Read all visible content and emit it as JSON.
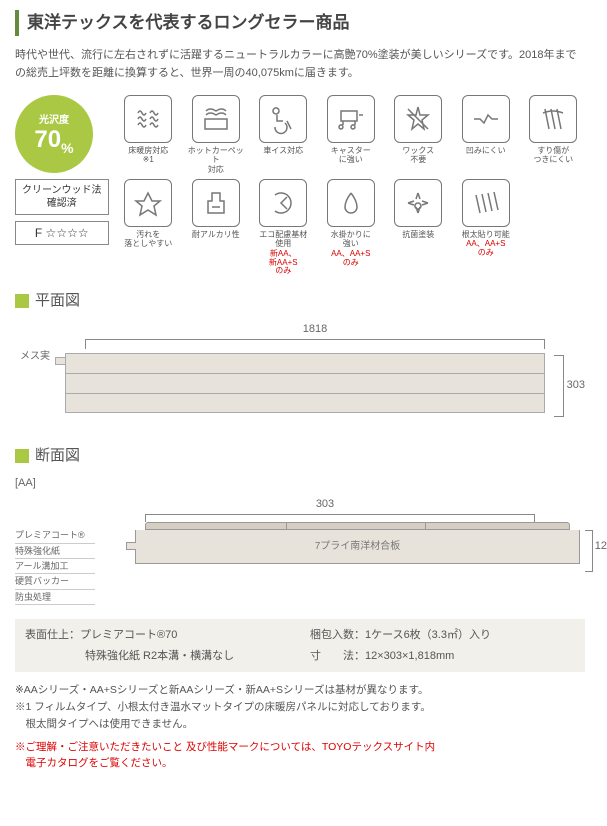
{
  "title": "東洋テックスを代表するロングセラー商品",
  "description": "時代や世代、流行に左右されずに活躍するニュートラルカラーに高艶70%塗装が美しいシリーズです。2018年までの総売上坪数を距離に換算すると、世界一周の40,075kmに届きます。",
  "gloss": {
    "label": "光沢度",
    "value": "70",
    "unit": "%"
  },
  "cert": "クリーンウッド法\n確認済",
  "f_rating": "F ☆☆☆☆",
  "icons": [
    {
      "label": "床暖房対応\n※1",
      "note": ""
    },
    {
      "label": "ホットカーペット\n対応",
      "note": ""
    },
    {
      "label": "車イス対応",
      "note": ""
    },
    {
      "label": "キャスター\nに強い",
      "note": ""
    },
    {
      "label": "ワックス\n不要",
      "note": ""
    },
    {
      "label": "凹みにくい",
      "note": ""
    },
    {
      "label": "すり傷が\nつきにくい",
      "note": ""
    },
    {
      "label": "汚れを\n落としやすい",
      "note": ""
    },
    {
      "label": "耐アルカリ性",
      "note": ""
    },
    {
      "label": "エコ配慮基材\n使用",
      "note": "新AA、\n新AA+S\nのみ"
    },
    {
      "label": "水掛かりに\n強い",
      "note": "AA、AA+S\nのみ"
    },
    {
      "label": "抗菌塗装",
      "note": ""
    },
    {
      "label": "根太貼り可能",
      "note": "AA、AA+S\nのみ"
    }
  ],
  "plan": {
    "title": "平面図",
    "width": "1818",
    "height": "303",
    "mesu": "メス実"
  },
  "cross": {
    "title": "断面図",
    "variant": "[AA]",
    "width": "303",
    "height": "12",
    "layers": [
      "プレミアコート®",
      "特殊強化紙",
      "アール溝加工",
      "硬質バッカー",
      "防虫処理"
    ],
    "core": "7プライ南洋材合板"
  },
  "specs": {
    "finish_label": "表面仕上：",
    "finish_val": "プレミアコート®70",
    "finish_sub": "特殊強化紙 R2本溝・横溝なし",
    "pack_label": "梱包入数：",
    "pack_val": "1ケース6枚（3.3㎡）入り",
    "dim_label": "寸　　法：",
    "dim_val": "12×303×1,818mm"
  },
  "notes": {
    "n1": "※AAシリーズ・AA+Sシリーズと新AAシリーズ・新AA+Sシリーズは基材が異なります。",
    "n2": "※1 フィルムタイプ、小根太付き温水マットタイプの床暖房パネルに対応しております。\n　根太間タイプへは使用できません。",
    "n3": "※ご理解・ご注意いただきたいこと 及び性能マークについては、TOYOテックスサイト内\n　電子カタログをご覧ください。"
  },
  "icon_svgs": [
    "M6 10 Q8 6 10 10 Q12 14 14 10 M6 16 Q8 12 10 16 Q12 20 14 16 M6 22 Q8 18 10 22 Q12 26 14 22 M18 10 Q20 6 22 10 Q24 14 26 10 M18 16 Q20 12 22 16 Q24 20 26 16 M18 22 Q20 18 22 22 Q24 26 26 22",
    "M6 8 Q10 4 16 8 Q22 4 26 8 M6 12 Q10 8 16 12 Q22 8 26 12 M5 16 L27 16 L27 26 L5 26 Z",
    "M12 8 A3 3 0 1 1 12 7.9 M10 12 L10 18 L16 18 M8 24 A6 6 0 1 0 18 20 M20 18 L24 26",
    "M6 8 L22 8 L22 18 L6 18 Z M8 18 L8 22 M20 18 L20 22 M8 24 A2 2 0 1 1 8 23.9 M20 24 A2 2 0 1 1 20 23.9 M24 12 L28 12",
    "M16 4 L18 12 L26 12 L20 17 L22 26 L16 21 L10 26 L12 17 L6 12 L14 12 Z M6 6 L26 26",
    "M4 16 L10 16 L14 20 L18 12 L22 16 L28 16",
    "M8 6 L12 26 M14 6 L18 26 M20 6 L24 26 M6 10 Q16 6 26 10",
    "M16 6 L20 14 L28 14 L22 19 L24 28 L16 23 L8 28 L10 19 L4 14 L12 14 Z",
    "M12 6 L20 6 L20 14 L24 14 L24 26 L8 26 L8 14 L12 14 Z M12 20 L20 20",
    "M8 8 A10 10 0 1 1 8 24 M20 10 L14 16 L20 22",
    "M16 6 Q10 14 10 20 A6 6 0 1 0 22 20 Q22 14 16 6",
    "M16 6 L18 12 M16 6 L14 12 M6 16 L12 14 M6 16 L12 18 M26 16 L20 14 M26 16 L20 18 M16 26 L14 20 M16 26 L18 20 M16 16 A3 3 0 1 1 15.9 16",
    "M6 8 L10 26 M12 7 L16 25 M18 6 L22 24 M24 5 L28 23"
  ]
}
